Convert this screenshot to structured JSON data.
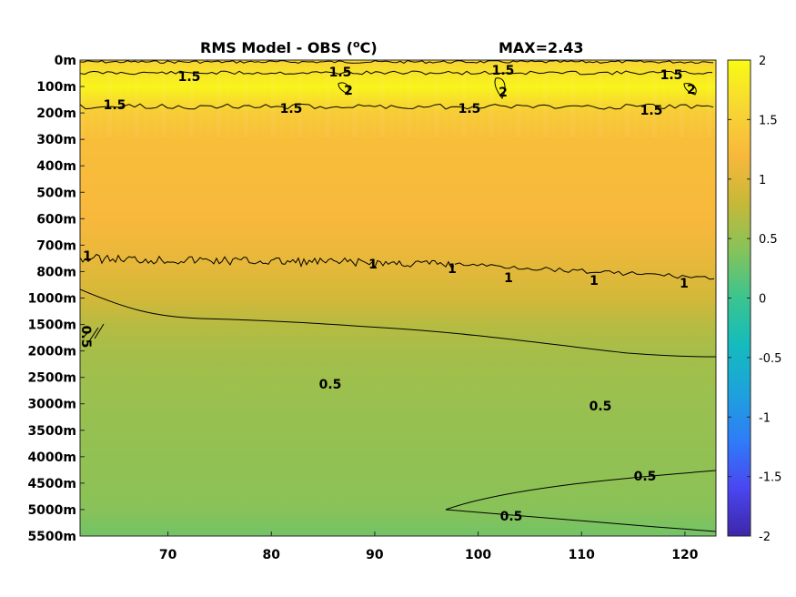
{
  "chart_data": {
    "type": "heatmap",
    "title": "RMS Model - OBS (",
    "title_unit": "oC",
    "title_max": "MAX=2.43",
    "x_ticks": [
      70,
      80,
      90,
      100,
      110,
      120
    ],
    "xlim": [
      61.5,
      123
    ],
    "y_ticks": [
      "0m",
      "100m",
      "200m",
      "300m",
      "400m",
      "500m",
      "600m",
      "700m",
      "800m",
      "1000m",
      "1500m",
      "2000m",
      "2500m",
      "3000m",
      "3500m",
      "4000m",
      "4500m",
      "5000m",
      "5500m"
    ],
    "colorbar": {
      "range": [
        -2,
        2
      ],
      "ticks": [
        "2",
        "1.5",
        "1",
        "0.5",
        "0",
        "-0.5",
        "-1",
        "-1.5",
        "-2"
      ],
      "colormap": [
        "#3e26a8",
        "#4a46f1",
        "#2f7cf8",
        "#1da2dc",
        "#14bbbe",
        "#3bc48f",
        "#85c35a",
        "#c7b838",
        "#f8b83c",
        "#f7d733",
        "#f9fb14"
      ]
    },
    "rows": [
      {
        "depth": "0m",
        "value": 1.55
      },
      {
        "depth": "100m",
        "value": 1.92
      },
      {
        "depth": "200m",
        "value": 1.45
      },
      {
        "depth": "300m",
        "value": 1.28
      },
      {
        "depth": "400m",
        "value": 1.25
      },
      {
        "depth": "500m",
        "value": 1.23
      },
      {
        "depth": "600m",
        "value": 1.2
      },
      {
        "depth": "700m",
        "value": 1.12
      },
      {
        "depth": "800m",
        "value": 1.02
      },
      {
        "depth": "1000m",
        "value": 0.9
      },
      {
        "depth": "1500m",
        "value": 0.7
      },
      {
        "depth": "2000m",
        "value": 0.6
      },
      {
        "depth": "2500m",
        "value": 0.56
      },
      {
        "depth": "3000m",
        "value": 0.52
      },
      {
        "depth": "3500m",
        "value": 0.5
      },
      {
        "depth": "4000m",
        "value": 0.48
      },
      {
        "depth": "4500m",
        "value": 0.46
      },
      {
        "depth": "5000m",
        "value": 0.42
      },
      {
        "depth": "5500m",
        "value": 0.3
      }
    ],
    "contour_labels": [
      "1.5",
      "1.5",
      "1.5",
      "1.5",
      "1.5",
      "1.5",
      "1.5",
      "1.5",
      "2",
      "2",
      "2",
      "1",
      "1",
      "1",
      "1",
      "1",
      "1",
      "0.5",
      "0.5",
      "0.5",
      "0.5",
      "0.5"
    ]
  }
}
